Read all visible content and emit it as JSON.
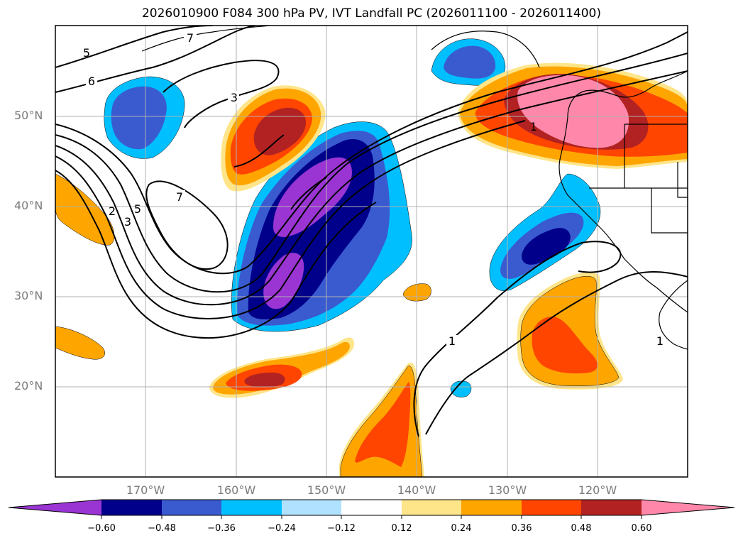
{
  "title": "2026010900 F084 300 hPa PV, IVT Landfall PC (2026011100 - 2026011400)",
  "map": {
    "latitude_labels": [
      "50°N",
      "40°N",
      "30°N",
      "20°N"
    ],
    "longitude_labels": [
      "170°W",
      "160°W",
      "150°W",
      "140°W",
      "130°W",
      "120°W"
    ],
    "pv_contour_labels": [
      "7",
      "6",
      "5",
      "3",
      "7",
      "2",
      "3",
      "5",
      "1",
      "1",
      "1"
    ],
    "grid": true
  },
  "colorbar": {
    "ticks": [
      "−0.60",
      "−0.48",
      "−0.36",
      "−0.24",
      "−0.12",
      "0.12",
      "0.24",
      "0.36",
      "0.48",
      "0.60"
    ],
    "colors": [
      "#9a35d3",
      "#00008b",
      "#3a5bd0",
      "#00bfff",
      "#b0e2ff",
      "#ffffff",
      "#ffe58a",
      "#ffa500",
      "#ff4500",
      "#b22222",
      "#ff88aa"
    ],
    "extend": "both"
  }
}
